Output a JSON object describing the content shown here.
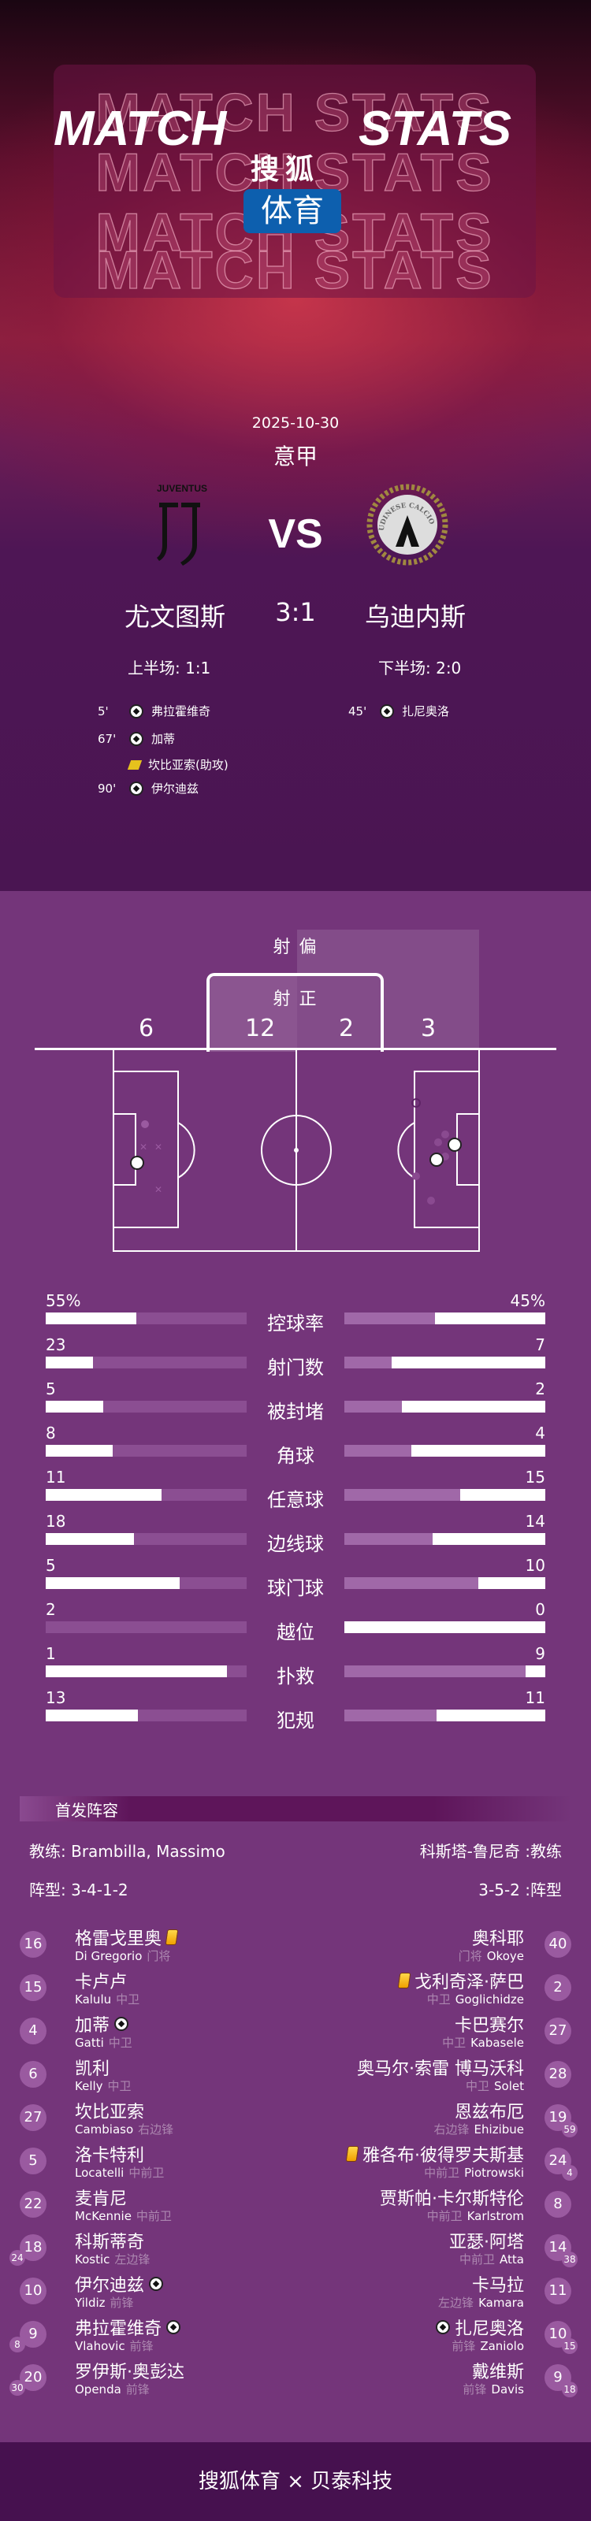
{
  "banner": {
    "watermark": "MATCH STATS",
    "title_left": "MATCH",
    "title_right": "STATS",
    "logo_top": "搜狐",
    "logo_box": "体育",
    "logo_box_color": "#0d5fae"
  },
  "match": {
    "date": "2025-10-30",
    "league": "意甲",
    "vs": "VS",
    "home": "尤文图斯",
    "away": "乌迪内斯",
    "score": "3:1",
    "home_logo_text": "JUVENTUS",
    "away_logo_text": "UDINESE CALCIO",
    "first_half": "上半场: 1:1",
    "second_half": "下半场: 2:0"
  },
  "events": {
    "home": [
      {
        "minute": "5'",
        "icon": "goal-ball",
        "player": "弗拉霍维奇"
      },
      {
        "minute": "67'",
        "icon": "goal-ball",
        "player": "加蒂"
      },
      {
        "minute": "",
        "icon": "assist-boot",
        "player": "坎比亚索(助攻)"
      },
      {
        "minute": "90'",
        "icon": "goal-ball",
        "player": "伊尔迪兹"
      }
    ],
    "away": [
      {
        "minute": "45'",
        "icon": "goal-ball",
        "player": "扎尼奥洛"
      }
    ]
  },
  "shots": {
    "off_label": "射 偏",
    "on_label": "射 正",
    "home_off": "6",
    "home_on": "12",
    "away_on": "2",
    "away_off": "3"
  },
  "stats": [
    {
      "label": "控球率",
      "home": "55%",
      "away": "45%",
      "hv": 55,
      "av": 45
    },
    {
      "label": "射门数",
      "home": "23",
      "away": "7",
      "hv": 23,
      "av": 7
    },
    {
      "label": "被封堵",
      "home": "5",
      "away": "2",
      "hv": 5,
      "av": 2
    },
    {
      "label": "角球",
      "home": "8",
      "away": "4",
      "hv": 8,
      "av": 4
    },
    {
      "label": "任意球",
      "home": "11",
      "away": "15",
      "hv": 11,
      "av": 15
    },
    {
      "label": "边线球",
      "home": "18",
      "away": "14",
      "hv": 18,
      "av": 14
    },
    {
      "label": "球门球",
      "home": "5",
      "away": "10",
      "hv": 5,
      "av": 10
    },
    {
      "label": "越位",
      "home": "2",
      "away": "0",
      "hv": 2,
      "av": 0
    },
    {
      "label": "扑救",
      "home": "1",
      "away": "9",
      "hv": 1,
      "av": 9
    },
    {
      "label": "犯规",
      "home": "13",
      "away": "11",
      "hv": 13,
      "av": 11
    }
  ],
  "colors": {
    "background": "#74357a",
    "bar_home": "#8b4e92",
    "bar_away": "#a068a8",
    "footer": "#46114f"
  },
  "lineup": {
    "title": "首发阵容",
    "home_coach": "教练: Brambilla, Massimo",
    "away_coach": "科斯塔-鲁尼奇 :教练",
    "home_formation": "阵型: 3-4-1-2",
    "away_formation": "3-5-2 :阵型",
    "home": [
      {
        "num": "16",
        "name": "格雷戈里奥",
        "en": "Di Gregorio",
        "pos": "门将",
        "yellow": true
      },
      {
        "num": "15",
        "name": "卡卢卢",
        "en": "Kalulu",
        "pos": "中卫"
      },
      {
        "num": "4",
        "name": "加蒂",
        "en": "Gatti",
        "pos": "中卫",
        "goal": true
      },
      {
        "num": "6",
        "name": "凯利",
        "en": "Kelly",
        "pos": "中卫"
      },
      {
        "num": "27",
        "name": "坎比亚索",
        "en": "Cambiaso",
        "pos": "右边锋"
      },
      {
        "num": "5",
        "name": "洛卡特利",
        "en": "Locatelli",
        "pos": "中前卫"
      },
      {
        "num": "22",
        "name": "麦肯尼",
        "en": "McKennie",
        "pos": "中前卫"
      },
      {
        "num": "18",
        "name": "科斯蒂奇",
        "en": "Kostic",
        "pos": "左边锋",
        "sub": "24"
      },
      {
        "num": "10",
        "name": "伊尔迪兹",
        "en": "Yildiz",
        "pos": "前锋",
        "goal": true
      },
      {
        "num": "9",
        "name": "弗拉霍维奇",
        "en": "Vlahovic",
        "pos": "前锋",
        "goal": true,
        "sub": "8"
      },
      {
        "num": "20",
        "name": "罗伊斯·奥彭达",
        "en": "Openda",
        "pos": "前锋",
        "sub": "30"
      }
    ],
    "away": [
      {
        "num": "40",
        "name": "奥科耶",
        "en": "Okoye",
        "pos": "门将"
      },
      {
        "num": "2",
        "name": "戈利奇泽·萨巴",
        "en": "Goglichidze",
        "pos": "中卫",
        "yellow": true
      },
      {
        "num": "27",
        "name": "卡巴赛尔",
        "en": "Kabasele",
        "pos": "中卫"
      },
      {
        "num": "28",
        "name": "奥马尔·索雷 博马沃科",
        "en": "Solet",
        "pos": "中卫"
      },
      {
        "num": "19",
        "name": "恩兹布厄",
        "en": "Ehizibue",
        "pos": "右边锋",
        "sub": "59"
      },
      {
        "num": "24",
        "name": "雅各布·彼得罗夫斯基",
        "en": "Piotrowski",
        "pos": "中前卫",
        "yellow": true,
        "sub": "4"
      },
      {
        "num": "8",
        "name": "贾斯帕·卡尔斯特伦",
        "en": "Karlstrom",
        "pos": "中前卫"
      },
      {
        "num": "14",
        "name": "亚瑟·阿塔",
        "en": "Atta",
        "pos": "中前卫",
        "sub": "38"
      },
      {
        "num": "11",
        "name": "卡马拉",
        "en": "Kamara",
        "pos": "左边锋"
      },
      {
        "num": "10",
        "name": "扎尼奥洛",
        "en": "Zaniolo",
        "pos": "前锋",
        "goal": true,
        "sub": "15"
      },
      {
        "num": "9",
        "name": "戴维斯",
        "en": "Davis",
        "pos": "前锋",
        "sub": "18"
      }
    ]
  },
  "footer": "搜狐体育 × 贝泰科技"
}
